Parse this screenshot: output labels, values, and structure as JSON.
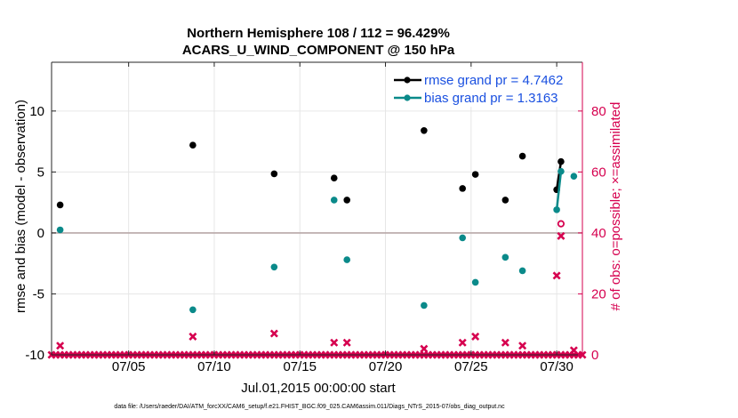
{
  "chart_data": {
    "type": "scatter",
    "title_line1": "Northern Hemisphere 108 / 112 = 96.429%",
    "title_line2": "ACARS_U_WIND_COMPONENT @ 150 hPa",
    "xlabel": "Jul.01,2015 00:00:00 start",
    "ylabel_left": "rmse and bias (model - observation)",
    "ylabel_right": "# of obs: o=possible; ×=assimilated",
    "xlim": [
      0.5,
      31.5
    ],
    "ylim_left": [
      -10,
      14
    ],
    "ylim_right": [
      0,
      96
    ],
    "x_ticks": [
      5,
      10,
      15,
      20,
      25,
      30
    ],
    "x_tick_labels": [
      "07/05",
      "07/10",
      "07/15",
      "07/20",
      "07/25",
      "07/30"
    ],
    "y_ticks_left": [
      -10,
      -5,
      0,
      5,
      10
    ],
    "y_tick_labels_left": [
      "-10",
      "-5",
      "0",
      "5",
      "10"
    ],
    "y_ticks_right": [
      0,
      20,
      40,
      60,
      80
    ],
    "y_tick_labels_right": [
      "0",
      "20",
      "40",
      "60",
      "80"
    ],
    "grid": true,
    "legend_position": "top-right",
    "series": [
      {
        "name": "rmse grand pr = 4.7462",
        "color": "#000000",
        "x": [
          1.0,
          8.75,
          13.5,
          17.0,
          17.75,
          22.25,
          24.5,
          25.25,
          27.0,
          28.0,
          30.0,
          30.25
        ],
        "values": [
          2.3,
          7.2,
          4.85,
          4.5,
          2.7,
          8.4,
          3.65,
          4.8,
          2.7,
          6.3,
          3.55,
          5.85
        ],
        "connected": [
          [
            30.0,
            3.55
          ],
          [
            30.25,
            5.85
          ]
        ]
      },
      {
        "name": "bias grand pr = 1.3163",
        "color": "#0a8a8a",
        "x": [
          1.0,
          8.75,
          13.5,
          17.0,
          17.75,
          22.25,
          24.5,
          25.25,
          27.0,
          28.0,
          30.0,
          30.25,
          31.0
        ],
        "values": [
          0.25,
          -6.3,
          -2.8,
          2.7,
          -2.2,
          -5.95,
          -0.4,
          -4.05,
          -2.0,
          -3.1,
          1.9,
          5.05,
          4.65
        ],
        "connected": [
          [
            30.0,
            1.9
          ],
          [
            30.25,
            5.05
          ]
        ]
      }
    ],
    "obs_possible": {
      "color": "#d6004f",
      "marker": "o",
      "x": [
        30.25
      ],
      "values": [
        43
      ]
    },
    "obs_assimilated": {
      "color": "#d6004f",
      "marker": "x",
      "baseline_x_start": 0.5,
      "baseline_x_end": 31.5,
      "baseline_step": 0.25,
      "baseline_value": 0,
      "x": [
        1.0,
        8.75,
        13.5,
        17.0,
        17.75,
        22.25,
        24.5,
        25.25,
        27.0,
        28.0,
        30.0,
        30.25,
        31.0
      ],
      "values": [
        3,
        6,
        7,
        4,
        4,
        2,
        4,
        6,
        4,
        3,
        26,
        39,
        1.5
      ]
    }
  },
  "footer": "data file: /Users/raeder/DAI/ATM_forcXX/CAM6_setup/f.e21.FHIST_BGC.f09_025.CAM6assim.011/Diags_NTrS_2015-07/obs_diag_output.nc"
}
